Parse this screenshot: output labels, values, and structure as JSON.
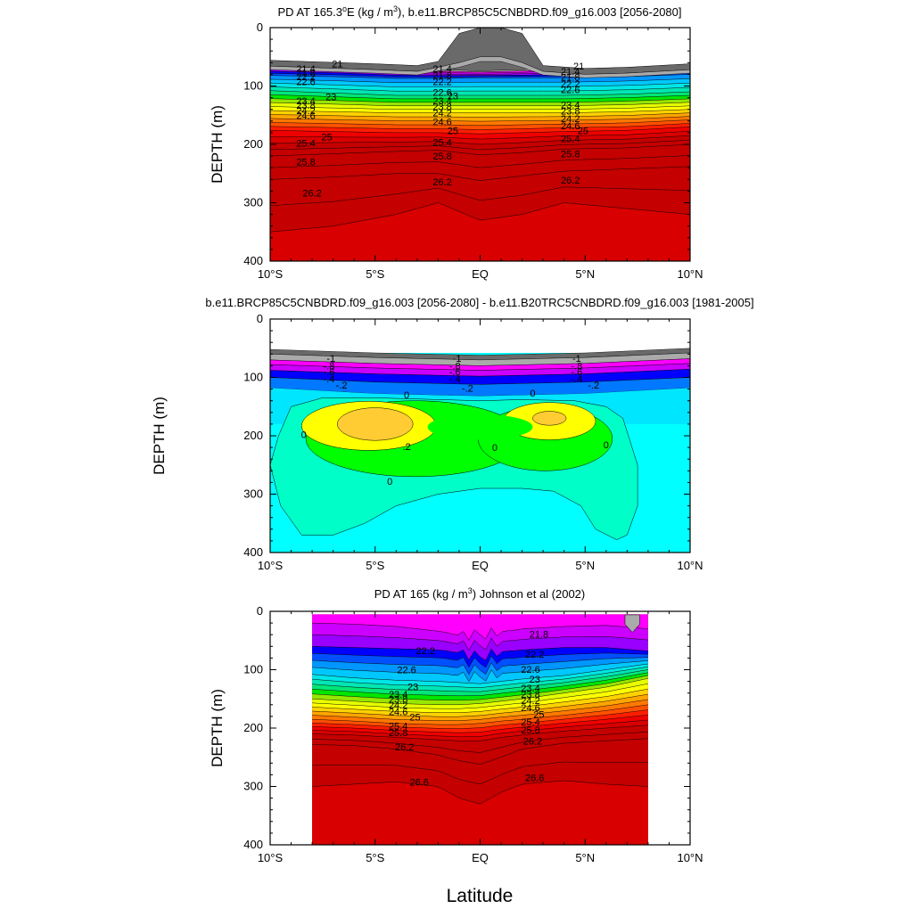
{
  "figure": {
    "xlabel": "Latitude"
  },
  "palette": {
    "density": [
      "#6a6a6a",
      "#aaaaaa",
      "#ff00ff",
      "#cc00ff",
      "#9900ff",
      "#0000ff",
      "#0050ff",
      "#0096ff",
      "#00c8ff",
      "#00e6e6",
      "#00e6b4",
      "#00e678",
      "#00e600",
      "#96e600",
      "#e6ff00",
      "#ffff00",
      "#ffd200",
      "#ffa500",
      "#ff7800",
      "#ff5000",
      "#ff1e00",
      "#ee0000",
      "#d80000",
      "#c40000"
    ],
    "difference": [
      "#6a6a6a",
      "#aaaaaa",
      "#ff00ff",
      "#cc00ff",
      "#0000ff",
      "#0078ff",
      "#00b4ff",
      "#00e6ff",
      "#00ffe6",
      "#00ffc8",
      "#00ff64",
      "#00ff00",
      "#96ff00",
      "#ffff00",
      "#ffcc33"
    ],
    "contour_line": "#000000",
    "missing": "#ffffff"
  },
  "chart_data": [
    {
      "type": "heatmap",
      "title": "PD AT 165.3°E (kg / m³), b.e11.BRCP85C5CNBDRD.f09_g16.003 [2056-2080]",
      "title_parts": {
        "pre": "PD AT 165.3",
        "deg": "o",
        "mid": "E (kg / m",
        "sup": "3",
        "post": "), b.e11.BRCP85C5CNBDRD.f09_g16.003 [2056-2080]"
      },
      "ylabel": "DEPTH (m)",
      "xlim": [
        -10,
        10
      ],
      "ylim": [
        400,
        0
      ],
      "x_ticks": [
        -10,
        -5,
        0,
        5,
        10
      ],
      "x_tick_labels": [
        "10°S",
        "5°S",
        "EQ",
        "5°N",
        "10°N"
      ],
      "y_ticks": [
        0,
        100,
        200,
        300,
        400
      ],
      "y_tick_labels": [
        "0",
        "100",
        "200",
        "300",
        "400"
      ],
      "field": "potential density (kg/m3)",
      "lat_range": [
        -10,
        10
      ],
      "surface": {
        "lat": [
          -10,
          -5,
          -3,
          -2,
          -1,
          0,
          1,
          2,
          3,
          5,
          7,
          10
        ],
        "depth": [
          56,
          62,
          65,
          58,
          10,
          0,
          0,
          10,
          65,
          70,
          68,
          62
        ]
      },
      "contour_levels": [
        21,
        21.2,
        21.4,
        21.6,
        21.8,
        22,
        22.2,
        22.4,
        22.6,
        22.8,
        23,
        23.2,
        23.4,
        23.6,
        23.8,
        24,
        24.2,
        24.4,
        24.6,
        24.8,
        25,
        25.2,
        25.4,
        25.6,
        25.8,
        26,
        26.2,
        26.4,
        26.6
      ],
      "isopycnal_depths": {
        "lat": [
          -10,
          -7,
          -4,
          -2,
          0,
          2,
          4,
          7,
          10
        ],
        "21": [
          60,
          64,
          70,
          72,
          74,
          72,
          68,
          63,
          58
        ],
        "22.2": [
          82,
          84,
          87,
          87,
          86,
          86,
          86,
          84,
          80
        ],
        "23": [
          108,
          112,
          116,
          116,
          116,
          116,
          116,
          114,
          110
        ],
        "24": [
          142,
          144,
          146,
          146,
          146,
          146,
          146,
          144,
          140
        ],
        "25": [
          176,
          178,
          180,
          180,
          182,
          180,
          178,
          176,
          170
        ],
        "25.8": [
          220,
          216,
          212,
          210,
          218,
          214,
          208,
          206,
          200
        ],
        "26.2": [
          260,
          256,
          250,
          250,
          262,
          254,
          246,
          242,
          238
        ],
        "26.6": [
          350,
          340,
          320,
          300,
          330,
          320,
          300,
          310,
          320
        ]
      },
      "labels": [
        {
          "text": "21",
          "lat": -6.8,
          "depth": 62
        },
        {
          "text": "21.4",
          "lat": -8.3,
          "depth": 70
        },
        {
          "text": "21.8",
          "lat": -8.3,
          "depth": 77
        },
        {
          "text": "22.2",
          "lat": -8.3,
          "depth": 84
        },
        {
          "text": "22.6",
          "lat": -8.3,
          "depth": 92
        },
        {
          "text": "23",
          "lat": -7.1,
          "depth": 118
        },
        {
          "text": "23.4",
          "lat": -8.3,
          "depth": 125
        },
        {
          "text": "23.8",
          "lat": -8.3,
          "depth": 133
        },
        {
          "text": "24.2",
          "lat": -8.3,
          "depth": 142
        },
        {
          "text": "24.6",
          "lat": -8.3,
          "depth": 150
        },
        {
          "text": "25",
          "lat": -7.3,
          "depth": 187
        },
        {
          "text": "25.4",
          "lat": -8.3,
          "depth": 198
        },
        {
          "text": "25.8",
          "lat": -8.3,
          "depth": 230
        },
        {
          "text": "26.2",
          "lat": -8.0,
          "depth": 283
        },
        {
          "text": "21.4",
          "lat": -1.8,
          "depth": 70
        },
        {
          "text": "21.8",
          "lat": -1.8,
          "depth": 82
        },
        {
          "text": "22.2",
          "lat": -1.8,
          "depth": 92
        },
        {
          "text": "22.6",
          "lat": -1.8,
          "depth": 111
        },
        {
          "text": "23",
          "lat": -1.3,
          "depth": 117
        },
        {
          "text": "23.4",
          "lat": -1.8,
          "depth": 125
        },
        {
          "text": "23.8",
          "lat": -1.8,
          "depth": 135
        },
        {
          "text": "24.2",
          "lat": -1.8,
          "depth": 146
        },
        {
          "text": "24.6",
          "lat": -1.8,
          "depth": 161
        },
        {
          "text": "25",
          "lat": -1.3,
          "depth": 176
        },
        {
          "text": "25.4",
          "lat": -1.8,
          "depth": 196
        },
        {
          "text": "25.8",
          "lat": -1.8,
          "depth": 220
        },
        {
          "text": "26.2",
          "lat": -1.8,
          "depth": 264
        },
        {
          "text": "21",
          "lat": 4.7,
          "depth": 66
        },
        {
          "text": "21.4",
          "lat": 4.3,
          "depth": 75
        },
        {
          "text": "21.8",
          "lat": 4.3,
          "depth": 85
        },
        {
          "text": "22.2",
          "lat": 4.3,
          "depth": 96
        },
        {
          "text": "22.6",
          "lat": 4.3,
          "depth": 106
        },
        {
          "text": "23.4",
          "lat": 4.3,
          "depth": 132
        },
        {
          "text": "23.8",
          "lat": 4.3,
          "depth": 143
        },
        {
          "text": "24.2",
          "lat": 4.3,
          "depth": 156
        },
        {
          "text": "24.6",
          "lat": 4.3,
          "depth": 168
        },
        {
          "text": "25",
          "lat": 4.9,
          "depth": 176
        },
        {
          "text": "25.4",
          "lat": 4.3,
          "depth": 190
        },
        {
          "text": "25.8",
          "lat": 4.3,
          "depth": 216
        },
        {
          "text": "26.2",
          "lat": 4.3,
          "depth": 261
        }
      ]
    },
    {
      "type": "heatmap",
      "title": "b.e11.BRCP85C5CNBDRD.f09_g16.003 [2056-2080] - b.e11.B20TRC5CNBDRD.f09_g16.003 [1981-2005]",
      "ylabel": "DEPTH (m)",
      "xlim": [
        -10,
        10
      ],
      "ylim": [
        400,
        0
      ],
      "x_ticks": [
        -10,
        -5,
        0,
        5,
        10
      ],
      "x_tick_labels": [
        "10°S",
        "5°S",
        "EQ",
        "5°N",
        "10°N"
      ],
      "y_ticks": [
        0,
        100,
        200,
        300,
        400
      ],
      "y_tick_labels": [
        "0",
        "100",
        "200",
        "300",
        "400"
      ],
      "field": "potential density difference (kg/m3)",
      "contour_levels": [
        -1,
        -0.8,
        -0.6,
        -0.4,
        -0.2,
        0,
        0.2
      ],
      "surface_depth": 60,
      "bands": [
        {
          "value": -1.0,
          "depth": [
            60,
            66,
            70,
            66,
            58
          ]
        },
        {
          "value": -0.8,
          "depth": [
            70,
            76,
            80,
            76,
            68
          ]
        },
        {
          "value": -0.6,
          "depth": [
            78,
            84,
            88,
            84,
            76
          ]
        },
        {
          "value": -0.4,
          "depth": [
            88,
            94,
            98,
            94,
            86
          ]
        },
        {
          "value": -0.2,
          "depth": [
            100,
            108,
            112,
            108,
            100
          ]
        },
        {
          "value": 0.0,
          "depth": [
            118,
            128,
            132,
            128,
            118
          ]
        }
      ],
      "zero_contour": {
        "lat": [
          -9.6,
          -9,
          -7.5,
          -5,
          -2,
          0,
          2,
          4.5,
          6,
          6.8,
          7.5,
          7.5,
          7,
          6.5,
          5.5,
          4.8,
          3.5,
          2,
          0,
          -2,
          -4,
          -5.5,
          -7,
          -8.5,
          -9.5,
          -10
        ],
        "depth": [
          200,
          150,
          135,
          135,
          138,
          140,
          138,
          140,
          150,
          170,
          250,
          320,
          370,
          378,
          360,
          320,
          295,
          290,
          290,
          300,
          320,
          350,
          370,
          370,
          320,
          250
        ]
      },
      "positive_regions": [
        {
          "value": 0.1,
          "center": [
            -3.1,
            205
          ],
          "half_extent": [
            5.2,
            65
          ]
        },
        {
          "value": 0.1,
          "center": [
            3.1,
            205
          ],
          "half_extent": [
            3.2,
            55
          ]
        },
        {
          "value": 0.2,
          "center": [
            -5.3,
            183
          ],
          "half_extent": [
            3.2,
            42
          ]
        },
        {
          "value": 0.2,
          "center": [
            3.3,
            175
          ],
          "half_extent": [
            2.2,
            32
          ]
        },
        {
          "value": 0.3,
          "center": [
            -5.0,
            180
          ],
          "half_extent": [
            1.8,
            28
          ]
        },
        {
          "value": 0.3,
          "center": [
            3.3,
            170
          ],
          "half_extent": [
            0.8,
            12
          ]
        }
      ],
      "labels": [
        {
          "text": "-1",
          "lat": -7.1,
          "depth": 67
        },
        {
          "text": "-.8",
          "lat": -7.2,
          "depth": 80
        },
        {
          "text": "-.6",
          "lat": -7.2,
          "depth": 90
        },
        {
          "text": "-.4",
          "lat": -7.2,
          "depth": 102
        },
        {
          "text": "-.2",
          "lat": -6.6,
          "depth": 113
        },
        {
          "text": "0",
          "lat": -3.5,
          "depth": 130
        },
        {
          "text": "0",
          "lat": -8.4,
          "depth": 198
        },
        {
          "text": ".2",
          "lat": -3.5,
          "depth": 218
        },
        {
          "text": "0",
          "lat": -4.3,
          "depth": 278
        },
        {
          "text": "-1",
          "lat": -1.1,
          "depth": 67
        },
        {
          "text": "-.8",
          "lat": -1.2,
          "depth": 80
        },
        {
          "text": "-.6",
          "lat": -1.2,
          "depth": 90
        },
        {
          "text": "-.4",
          "lat": -1.2,
          "depth": 102
        },
        {
          "text": "-.2",
          "lat": -0.6,
          "depth": 118
        },
        {
          "text": "0",
          "lat": 2.5,
          "depth": 127
        },
        {
          "text": "0",
          "lat": 0.7,
          "depth": 220
        },
        {
          "text": "-1",
          "lat": 4.6,
          "depth": 67
        },
        {
          "text": "-.8",
          "lat": 4.6,
          "depth": 80
        },
        {
          "text": "-.6",
          "lat": 4.6,
          "depth": 90
        },
        {
          "text": "-.4",
          "lat": 4.6,
          "depth": 102
        },
        {
          "text": "-.2",
          "lat": 5.4,
          "depth": 113
        },
        {
          "text": "0",
          "lat": 6.0,
          "depth": 215
        }
      ]
    },
    {
      "type": "heatmap",
      "title": "PD AT 165 (kg / m³) Johnson et al (2002)",
      "title_parts": {
        "pre": "PD AT 165 (kg / m",
        "sup": "3",
        "post": ") Johnson et al (2002)"
      },
      "ylabel": "DEPTH (m)",
      "xlim": [
        -10,
        10
      ],
      "ylim": [
        400,
        0
      ],
      "x_ticks": [
        -10,
        -5,
        0,
        5,
        10
      ],
      "x_tick_labels": [
        "10°S",
        "5°S",
        "EQ",
        "5°N",
        "10°N"
      ],
      "y_ticks": [
        0,
        100,
        200,
        300,
        400
      ],
      "y_tick_labels": [
        "0",
        "100",
        "200",
        "300",
        "400"
      ],
      "field": "potential density (kg/m3)",
      "data_extent": {
        "lat": [
          -8,
          8
        ],
        "depth": [
          5,
          400
        ]
      },
      "contour_levels": [
        21.8,
        22,
        22.2,
        22.4,
        22.6,
        22.8,
        23,
        23.2,
        23.4,
        23.6,
        23.8,
        24,
        24.2,
        24.4,
        24.6,
        24.8,
        25,
        25.2,
        25.4,
        25.6,
        25.8,
        26,
        26.2,
        26.4,
        26.6
      ],
      "isopycnal_depths": {
        "lat": [
          -8,
          -6,
          -4,
          -2,
          -1,
          0,
          1,
          2,
          4,
          6,
          8
        ],
        "21.8": [
          20,
          22,
          26,
          34,
          40,
          40,
          36,
          30,
          26,
          24,
          30
        ],
        "22.2": [
          60,
          62,
          64,
          66,
          70,
          78,
          70,
          66,
          62,
          62,
          68
        ],
        "23": [
          108,
          114,
          118,
          120,
          122,
          124,
          120,
          116,
          110,
          100,
          90
        ],
        "24": [
          150,
          154,
          158,
          160,
          160,
          158,
          154,
          150,
          140,
          130,
          115
        ],
        "25": [
          185,
          188,
          192,
          194,
          194,
          192,
          188,
          185,
          178,
          170,
          160
        ],
        "25.8": [
          210,
          212,
          216,
          220,
          222,
          222,
          216,
          212,
          205,
          200,
          195
        ],
        "26.2": [
          228,
          230,
          236,
          246,
          256,
          262,
          250,
          236,
          226,
          222,
          218
        ],
        "26.6": [
          300,
          296,
          292,
          300,
          320,
          330,
          310,
          296,
          290,
          296,
          300
        ]
      },
      "labels": [
        {
          "text": "22.2",
          "lat": -2.6,
          "depth": 67
        },
        {
          "text": "22.6",
          "lat": -3.5,
          "depth": 100
        },
        {
          "text": "23",
          "lat": -3.2,
          "depth": 129
        },
        {
          "text": "23.4",
          "lat": -3.9,
          "depth": 142
        },
        {
          "text": "23.8",
          "lat": -3.9,
          "depth": 150
        },
        {
          "text": "24.2",
          "lat": -3.9,
          "depth": 160
        },
        {
          "text": "24.6",
          "lat": -3.9,
          "depth": 172
        },
        {
          "text": "25",
          "lat": -3.1,
          "depth": 181
        },
        {
          "text": "25.4",
          "lat": -3.9,
          "depth": 196
        },
        {
          "text": "25.8",
          "lat": -3.9,
          "depth": 208
        },
        {
          "text": "26.2",
          "lat": -3.6,
          "depth": 232
        },
        {
          "text": "26.6",
          "lat": -2.9,
          "depth": 292
        },
        {
          "text": "21.8",
          "lat": 2.8,
          "depth": 39
        },
        {
          "text": "22.2",
          "lat": 2.6,
          "depth": 73
        },
        {
          "text": "22.6",
          "lat": 2.4,
          "depth": 99
        },
        {
          "text": "23",
          "lat": 2.6,
          "depth": 116
        },
        {
          "text": "23.4",
          "lat": 2.4,
          "depth": 131
        },
        {
          "text": "23.8",
          "lat": 2.4,
          "depth": 142
        },
        {
          "text": "24.2",
          "lat": 2.4,
          "depth": 153
        },
        {
          "text": "24.6",
          "lat": 2.4,
          "depth": 165
        },
        {
          "text": "25",
          "lat": 2.8,
          "depth": 176
        },
        {
          "text": "25.4",
          "lat": 2.4,
          "depth": 189
        },
        {
          "text": "25.8",
          "lat": 2.4,
          "depth": 203
        },
        {
          "text": "26.2",
          "lat": 2.5,
          "depth": 222
        },
        {
          "text": "26.6",
          "lat": 2.6,
          "depth": 285
        }
      ]
    }
  ]
}
